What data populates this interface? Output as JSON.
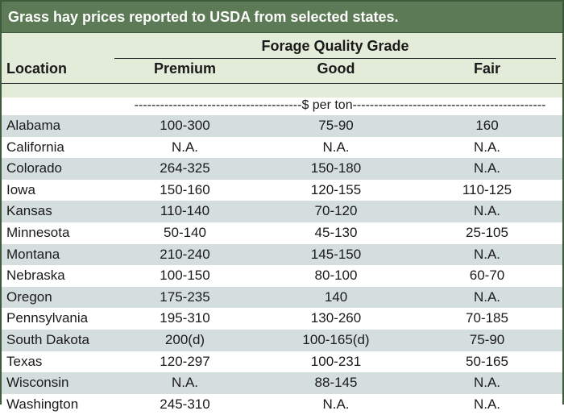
{
  "title": "Grass hay prices reported to USDA from selected states.",
  "header": {
    "group": "Forage Quality Grade",
    "location": "Location",
    "columns": [
      "Premium",
      "Good",
      "Fair"
    ],
    "units": "---------------------------------------$ per ton---------------------------------------------"
  },
  "rows": [
    {
      "location": "Alabama",
      "premium": "100-300",
      "good": "75-90",
      "fair": "160"
    },
    {
      "location": "California",
      "premium": "N.A.",
      "good": "N.A.",
      "fair": "N.A."
    },
    {
      "location": "Colorado",
      "premium": "264-325",
      "good": "150-180",
      "fair": "N.A."
    },
    {
      "location": "Iowa",
      "premium": "150-160",
      "good": "120-155",
      "fair": "110-125"
    },
    {
      "location": "Kansas",
      "premium": "110-140",
      "good": "70-120",
      "fair": "N.A."
    },
    {
      "location": "Minnesota",
      "premium": "50-140",
      "good": "45-130",
      "fair": "25-105"
    },
    {
      "location": "Montana",
      "premium": "210-240",
      "good": "145-150",
      "fair": "N.A."
    },
    {
      "location": "Nebraska",
      "premium": "100-150",
      "good": "80-100",
      "fair": "60-70"
    },
    {
      "location": "Oregon",
      "premium": "175-235",
      "good": "140",
      "fair": "N.A."
    },
    {
      "location": "Pennsylvania",
      "premium": "195-310",
      "good": "130-260",
      "fair": "70-185"
    },
    {
      "location": "South Dakota",
      "premium": "200(d)",
      "good": "100-165(d)",
      "fair": "75-90"
    },
    {
      "location": "Texas",
      "premium": "120-297",
      "good": "100-231",
      "fair": "50-165"
    },
    {
      "location": "Wisconsin",
      "premium": "N.A.",
      "good": "88-145",
      "fair": "N.A."
    },
    {
      "location": "Washington",
      "premium": "245-310",
      "good": "N.A.",
      "fair": "N.A."
    }
  ],
  "colors": {
    "title_bg": "#5c7a55",
    "header_bg": "#e3ebd9",
    "row_shade": "#d5dede",
    "border": "#3f5a3a"
  }
}
